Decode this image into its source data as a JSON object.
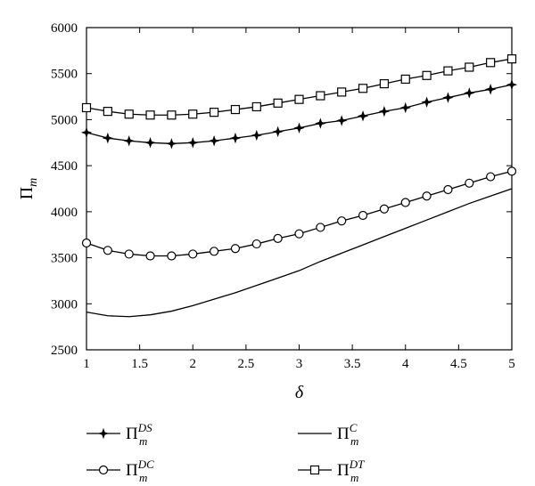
{
  "chart_data": {
    "type": "line",
    "xlabel": "δ",
    "ylabel": "Π",
    "ylabel_sub": "m",
    "xlim": [
      1,
      5
    ],
    "ylim": [
      2500,
      6000
    ],
    "xticks": [
      "1",
      "1.5",
      "2",
      "2.5",
      "3",
      "3.5",
      "4",
      "4.5",
      "5"
    ],
    "yticks": [
      "2500",
      "3000",
      "3500",
      "4000",
      "4500",
      "5000",
      "5500",
      "6000"
    ],
    "grid": false,
    "legend_position": "bottom",
    "x": [
      1.0,
      1.2,
      1.4,
      1.6,
      1.8,
      2.0,
      2.2,
      2.4,
      2.6,
      2.8,
      3.0,
      3.2,
      3.4,
      3.6,
      3.8,
      4.0,
      4.2,
      4.4,
      4.6,
      4.8,
      5.0
    ],
    "series": [
      {
        "key": "DS",
        "legend_base": "Π",
        "legend_sub": "m",
        "legend_sup": "DS",
        "marker": "star",
        "values": [
          4860,
          4800,
          4770,
          4750,
          4740,
          4750,
          4770,
          4800,
          4830,
          4870,
          4910,
          4960,
          4990,
          5040,
          5090,
          5130,
          5190,
          5240,
          5290,
          5330,
          5380
        ]
      },
      {
        "key": "DC",
        "legend_base": "Π",
        "legend_sub": "m",
        "legend_sup": "DC",
        "marker": "circle",
        "values": [
          3660,
          3580,
          3540,
          3520,
          3520,
          3540,
          3570,
          3600,
          3650,
          3710,
          3760,
          3830,
          3900,
          3960,
          4030,
          4100,
          4170,
          4240,
          4310,
          4380,
          4440
        ]
      },
      {
        "key": "C",
        "legend_base": "Π",
        "legend_sub": "m",
        "legend_sup": "C",
        "marker": "none",
        "values": [
          2910,
          2870,
          2860,
          2880,
          2920,
          2980,
          3050,
          3120,
          3200,
          3280,
          3360,
          3460,
          3550,
          3640,
          3730,
          3820,
          3910,
          4000,
          4090,
          4170,
          4250
        ]
      },
      {
        "key": "DT",
        "legend_base": "Π",
        "legend_sub": "m",
        "legend_sup": "DT",
        "marker": "square",
        "values": [
          5130,
          5090,
          5060,
          5050,
          5050,
          5060,
          5080,
          5110,
          5140,
          5180,
          5220,
          5260,
          5300,
          5340,
          5390,
          5440,
          5480,
          5530,
          5570,
          5620,
          5660
        ]
      }
    ]
  }
}
